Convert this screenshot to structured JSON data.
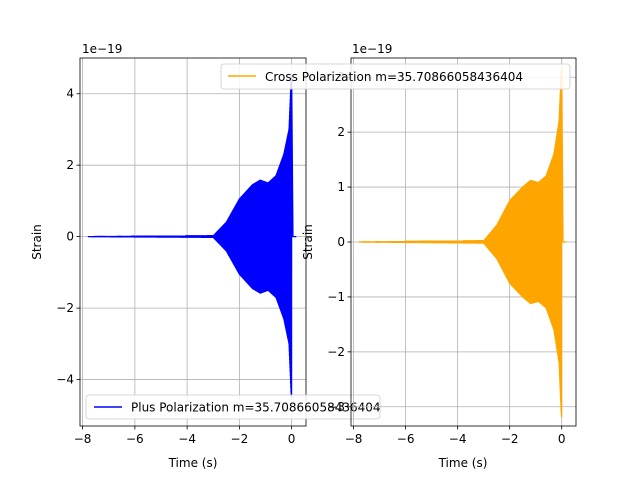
{
  "chart_data": [
    {
      "type": "line",
      "xlabel": "Time (s)",
      "ylabel": "Strain",
      "offset_text": "1e−19",
      "xlim": [
        -8.1,
        0.55
      ],
      "ylim": [
        -5.3,
        5.0
      ],
      "xticks": [
        -8,
        -6,
        -4,
        -2,
        0
      ],
      "xtick_labels": [
        "−8",
        "−6",
        "−4",
        "−2",
        "0"
      ],
      "yticks": [
        -4,
        -2,
        0,
        2,
        4
      ],
      "ytick_labels": [
        "−4",
        "−2",
        "0",
        "2",
        "4"
      ],
      "grid": true,
      "legend_position": "lower-left",
      "series": [
        {
          "name": "Plus Polarization m=35.70866058436404",
          "color": "#0000ff",
          "t_start": -7.8,
          "t_merger": 0.0,
          "envelope": [
            {
              "t": -7.8,
              "a": 0.0
            },
            {
              "t": -3.0,
              "a": 0.02
            },
            {
              "t": -2.5,
              "a": 0.4
            },
            {
              "t": -2.0,
              "a": 1.05
            },
            {
              "t": -1.5,
              "a": 1.45
            },
            {
              "t": -1.2,
              "a": 1.58
            },
            {
              "t": -0.9,
              "a": 1.5
            },
            {
              "t": -0.6,
              "a": 1.7
            },
            {
              "t": -0.3,
              "a": 2.3
            },
            {
              "t": -0.1,
              "a": 3.0
            },
            {
              "t": -0.02,
              "a": 4.4
            },
            {
              "t": 0.0,
              "a": 4.5
            }
          ]
        }
      ]
    },
    {
      "type": "line",
      "xlabel": "Time (s)",
      "ylabel": "Strain",
      "offset_text": "1e−19",
      "xlim": [
        -8.1,
        0.55
      ],
      "ylim": [
        -3.35,
        3.35
      ],
      "xticks": [
        -8,
        -6,
        -4,
        -2,
        0
      ],
      "xtick_labels": [
        "−8",
        "−6",
        "−4",
        "−2",
        "0"
      ],
      "yticks": [
        -3,
        -2,
        -1,
        0,
        1,
        2,
        3
      ],
      "ytick_labels": [
        "−3",
        "−2",
        "−1",
        "0",
        "1",
        "2",
        "3"
      ],
      "grid": true,
      "legend_position": "upper-right",
      "series": [
        {
          "name": "Cross Polarization m=35.70866058436404",
          "color": "#ffa500",
          "t_start": -7.8,
          "t_merger": 0.0,
          "envelope": [
            {
              "t": -7.8,
              "a": 0.0
            },
            {
              "t": -3.0,
              "a": 0.02
            },
            {
              "t": -2.5,
              "a": 0.3
            },
            {
              "t": -2.0,
              "a": 0.75
            },
            {
              "t": -1.5,
              "a": 1.0
            },
            {
              "t": -1.2,
              "a": 1.12
            },
            {
              "t": -0.9,
              "a": 1.08
            },
            {
              "t": -0.6,
              "a": 1.2
            },
            {
              "t": -0.3,
              "a": 1.6
            },
            {
              "t": -0.1,
              "a": 2.2
            },
            {
              "t": -0.02,
              "a": 3.1
            },
            {
              "t": 0.0,
              "a": 3.2
            }
          ]
        }
      ]
    }
  ]
}
